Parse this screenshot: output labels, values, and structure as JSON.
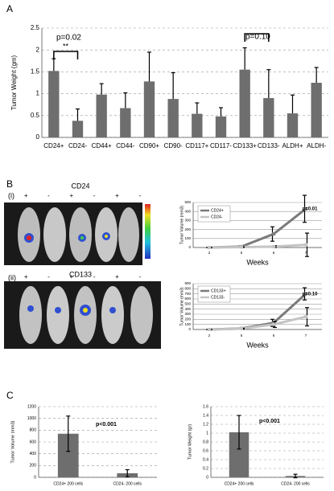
{
  "figure": {
    "panel_labels": [
      "A",
      "B",
      "C"
    ],
    "images": [
      {
        "label": "(i)",
        "title": "CD24",
        "signs": [
          "+",
          "-",
          "+",
          "-",
          "+",
          "-"
        ]
      },
      {
        "label": "(ii)",
        "title": "CD133",
        "signs": [
          "+",
          "-",
          "+",
          "-",
          "+",
          "-"
        ]
      }
    ]
  },
  "chart_data": [
    {
      "type": "bar",
      "ylabel": "Tumor Weight (gm)",
      "categories": [
        "CD24+",
        "CD24-",
        "CD44+",
        "CD44-",
        "CD90+",
        "CD90-",
        "CD117+",
        "CD117-",
        "CD133+",
        "CD133-",
        "ALDH+",
        "ALDH-"
      ],
      "values": [
        1.52,
        0.38,
        0.98,
        0.67,
        1.28,
        0.88,
        0.54,
        0.48,
        1.55,
        0.9,
        0.55,
        1.25
      ],
      "errors": [
        0.28,
        0.27,
        0.25,
        0.35,
        0.67,
        0.6,
        0.25,
        0.2,
        0.5,
        0.65,
        0.42,
        0.35
      ],
      "color": "#6e6e6e",
      "ylim": [
        0,
        2.5
      ],
      "yticks": [
        0,
        0.5,
        1,
        1.5,
        2,
        2.5
      ],
      "grid": true,
      "annotations": [
        "p=0.02",
        "**",
        "p=0.10"
      ]
    },
    {
      "type": "line",
      "ylabel": "Tumor Volume (mm3)",
      "xlabel": "Weeks",
      "categories": [
        "2",
        "5",
        "6",
        "7"
      ],
      "series": [
        {
          "name": "CD24+",
          "color": "#7a7a7a",
          "values": [
            0,
            10,
            150,
            430
          ],
          "errors": [
            0,
            5,
            80,
            150
          ]
        },
        {
          "name": "CD24-",
          "color": "#c4c4c4",
          "values": [
            0,
            5,
            10,
            30
          ],
          "errors": [
            0,
            3,
            10,
            130
          ]
        }
      ],
      "ylim": [
        0,
        500
      ],
      "yticks": [
        0,
        100,
        200,
        300,
        400,
        500
      ],
      "grid": true,
      "legend": "upper left",
      "annotations": [
        "p=0.01"
      ]
    },
    {
      "type": "line",
      "ylabel": "Tumor Volume (mm3)",
      "xlabel": "Weeks",
      "categories": [
        "2",
        "5",
        "6",
        "7"
      ],
      "series": [
        {
          "name": "CD133+",
          "color": "#7a7a7a",
          "values": [
            0,
            20,
            130,
            700
          ],
          "errors": [
            0,
            10,
            70,
            120
          ]
        },
        {
          "name": "CD133-",
          "color": "#c4c4c4",
          "values": [
            0,
            15,
            100,
            250
          ],
          "errors": [
            0,
            10,
            60,
            180
          ]
        }
      ],
      "ylim": [
        0,
        900
      ],
      "yticks": [
        0,
        100,
        200,
        300,
        400,
        500,
        600,
        700,
        800,
        900
      ],
      "grid": true,
      "legend": "upper left",
      "annotations": [
        "p=0.10"
      ]
    },
    {
      "type": "bar",
      "ylabel": "Tumor Volume (mm3)",
      "categories": [
        "CD24+ 200 cells",
        "CD24- 200 cells"
      ],
      "values": [
        740,
        70
      ],
      "errors": [
        300,
        60
      ],
      "color": "#6e6e6e",
      "ylim": [
        0,
        1200
      ],
      "yticks": [
        0,
        200,
        400,
        600,
        800,
        1000,
        1200
      ],
      "grid": true,
      "annotations": [
        "p<0.001"
      ]
    },
    {
      "type": "bar",
      "ylabel": "Tumor Weight (gr)",
      "categories": [
        "CD24+ 200 cells",
        "CD24- 200 cells"
      ],
      "values": [
        1.02,
        0.03
      ],
      "errors": [
        0.38,
        0.04
      ],
      "color": "#6e6e6e",
      "ylim": [
        0,
        1.6
      ],
      "yticks": [
        0,
        0.2,
        0.4,
        0.6,
        0.8,
        1,
        1.2,
        1.4,
        1.6
      ],
      "grid": true,
      "annotations": [
        "p<0.001"
      ]
    }
  ]
}
